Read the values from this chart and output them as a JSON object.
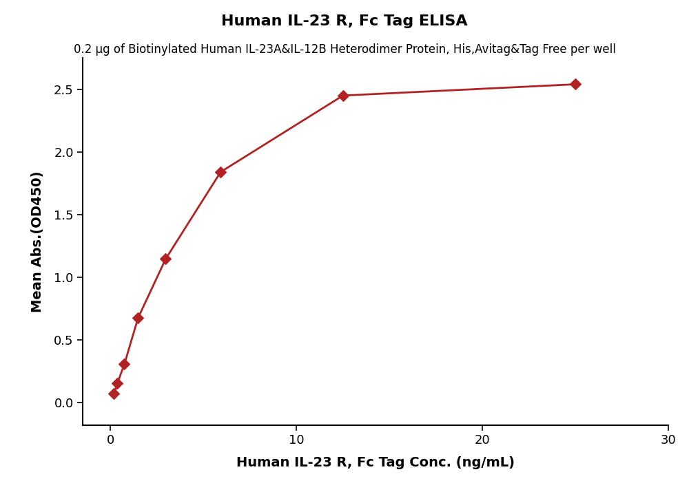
{
  "title": "Human IL-23 R, Fc Tag ELISA",
  "subtitle": "0.2 μg of Biotinylated Human IL-23A&IL-12B Heterodimer Protein, His,Avitag&Tag Free per well",
  "xlabel": "Human IL-23 R, Fc Tag Conc. (ng/mL)",
  "ylabel": "Mean Abs.(OD450)",
  "data_x": [
    0.185,
    0.37,
    0.74,
    1.48,
    2.96,
    5.92,
    12.5,
    25.0
  ],
  "data_y": [
    0.07,
    0.155,
    0.305,
    0.675,
    1.145,
    1.84,
    2.45,
    2.54
  ],
  "xlim": [
    -1.5,
    30
  ],
  "ylim": [
    -0.18,
    2.75
  ],
  "xticks": [
    0,
    10,
    20,
    30
  ],
  "yticks": [
    0.0,
    0.5,
    1.0,
    1.5,
    2.0,
    2.5
  ],
  "color": "#B22222",
  "marker": "D",
  "marker_size": 8,
  "line_width": 2.0,
  "title_fontsize": 16,
  "subtitle_fontsize": 12,
  "label_fontsize": 14,
  "tick_fontsize": 13
}
